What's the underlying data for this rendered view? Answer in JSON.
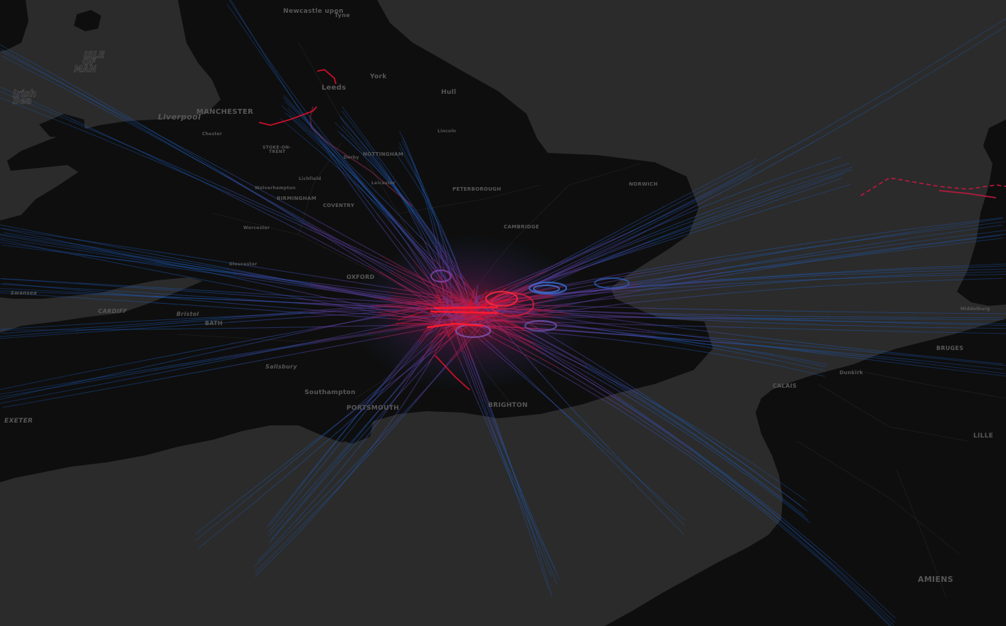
{
  "map": {
    "colors": {
      "sea": "#2b2b2b",
      "land": "#0e0e0e",
      "road": "#1c1c1c",
      "label": "#575757",
      "route_outbound": "#1e5bb8",
      "route_mid": "#6a3a9a",
      "route_hub": "#e0102a"
    },
    "place_labels": [
      {
        "id": "newcastle",
        "text": "Newcastle upon",
        "size": "major"
      },
      {
        "id": "tyne",
        "text": "Tyne",
        "size": "major"
      },
      {
        "id": "isle1",
        "text": "ISLE",
        "size": "sea"
      },
      {
        "id": "isle2",
        "text": "OF",
        "size": "sea"
      },
      {
        "id": "isle3",
        "text": "MAN",
        "size": "sea"
      },
      {
        "id": "irish1",
        "text": "Irish",
        "size": "sea"
      },
      {
        "id": "irish2",
        "text": "Sea",
        "size": "sea"
      },
      {
        "id": "york",
        "text": "York",
        "size": "major"
      },
      {
        "id": "leeds",
        "text": "Leeds",
        "size": "major"
      },
      {
        "id": "hull",
        "text": "Hull",
        "size": "major"
      },
      {
        "id": "manchester",
        "text": "MANCHESTER",
        "size": "major"
      },
      {
        "id": "liverpool",
        "text": "Liverpool",
        "size": "major"
      },
      {
        "id": "chester",
        "text": "Chester",
        "size": "minor"
      },
      {
        "id": "lincoln",
        "text": "Lincoln",
        "size": "minor"
      },
      {
        "id": "stoke1",
        "text": "STOKE-ON-",
        "size": "minor"
      },
      {
        "id": "stoke2",
        "text": "TRENT",
        "size": "minor"
      },
      {
        "id": "derby",
        "text": "Derby",
        "size": "minor"
      },
      {
        "id": "nottingham",
        "text": "NOTTINGHAM",
        "size": "minor"
      },
      {
        "id": "lichfield",
        "text": "Lichfield",
        "size": "minor"
      },
      {
        "id": "leicester",
        "text": "Leicester",
        "size": "minor"
      },
      {
        "id": "wolverhampton",
        "text": "Wolverhampton",
        "size": "minor"
      },
      {
        "id": "birmingham",
        "text": "BIRMINGHAM",
        "size": "minor"
      },
      {
        "id": "coventry",
        "text": "COVENTRY",
        "size": "minor"
      },
      {
        "id": "peterborough",
        "text": "PETERBOROUGH",
        "size": "minor"
      },
      {
        "id": "norwich",
        "text": "NORWICH",
        "size": "minor"
      },
      {
        "id": "worcester",
        "text": "Worcester",
        "size": "minor"
      },
      {
        "id": "cambridge",
        "text": "CAMBRIDGE",
        "size": "minor"
      },
      {
        "id": "gloucester",
        "text": "Gloucester",
        "size": "minor"
      },
      {
        "id": "oxford",
        "text": "OXFORD",
        "size": "medium"
      },
      {
        "id": "swansea",
        "text": "Swansea",
        "size": "minor"
      },
      {
        "id": "cardiff",
        "text": "CARDIFF",
        "size": "medium"
      },
      {
        "id": "bristol",
        "text": "Bristol",
        "size": "medium"
      },
      {
        "id": "bath",
        "text": "BATH",
        "size": "medium"
      },
      {
        "id": "salisbury",
        "text": "Salisbury",
        "size": "medium"
      },
      {
        "id": "southampton",
        "text": "Southampton",
        "size": "medium"
      },
      {
        "id": "portsmouth",
        "text": "PORTSMOUTH",
        "size": "medium"
      },
      {
        "id": "brighton",
        "text": "BRIGHTON",
        "size": "medium"
      },
      {
        "id": "exeter",
        "text": "EXETER",
        "size": "medium"
      },
      {
        "id": "calais",
        "text": "CALAIS",
        "size": "medium"
      },
      {
        "id": "dunkirk",
        "text": "Dunkirk",
        "size": "minor"
      },
      {
        "id": "bruges",
        "text": "BRUGES",
        "size": "medium"
      },
      {
        "id": "middelburg",
        "text": "Middelburg",
        "size": "minor"
      },
      {
        "id": "lille",
        "text": "LILLE",
        "size": "medium"
      },
      {
        "id": "amiens",
        "text": "AMIENS",
        "size": "large"
      }
    ]
  }
}
